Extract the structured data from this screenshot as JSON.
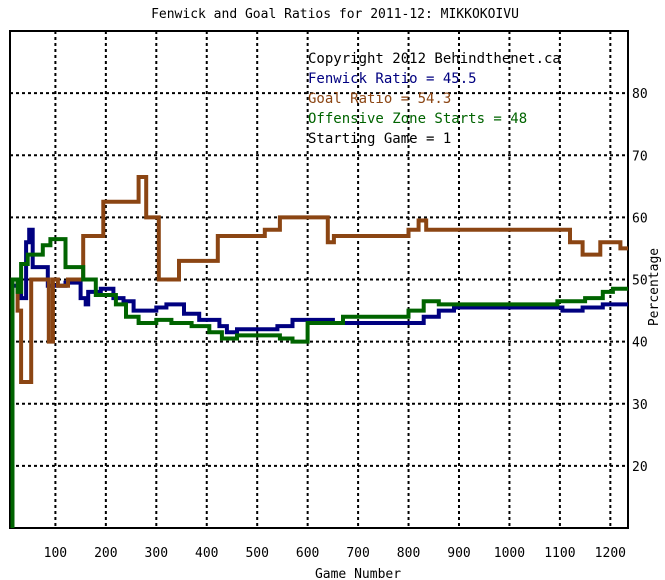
{
  "chart_data": {
    "type": "line",
    "title": "Fenwick and Goal Ratios for 2011-12: MIKKOKOIVU",
    "xlabel": "Game Number",
    "ylabel": "Percentage",
    "xlim": [
      10,
      1235
    ],
    "ylim": [
      10,
      90
    ],
    "x_ticks": [
      100,
      200,
      300,
      400,
      500,
      600,
      700,
      800,
      900,
      1000,
      1100,
      1200
    ],
    "y_ticks": [
      20,
      30,
      40,
      50,
      60,
      70,
      80
    ],
    "grid": true,
    "legend": {
      "placement": "top-right",
      "copyright": "Copyright 2012 Behindthenet.ca",
      "entries": [
        {
          "text": "Fenwick Ratio = 45.5",
          "color": "#000080"
        },
        {
          "text": "Goal Ratio = 54.3",
          "color": "#8b4513"
        },
        {
          "text": "Offensive Zone Starts = 48",
          "color": "#006400"
        }
      ],
      "starting_game": "Starting Game = 1"
    },
    "series": [
      {
        "color": "#000080",
        "points": [
          [
            15,
            10
          ],
          [
            15,
            49
          ],
          [
            25,
            49
          ],
          [
            25,
            50
          ],
          [
            32,
            50
          ],
          [
            32,
            47
          ],
          [
            42,
            47
          ],
          [
            42,
            56
          ],
          [
            48,
            56
          ],
          [
            48,
            58
          ],
          [
            55,
            58
          ],
          [
            55,
            52
          ],
          [
            85,
            52
          ],
          [
            85,
            49
          ],
          [
            120,
            49
          ],
          [
            120,
            49.5
          ],
          [
            145,
            49.5
          ],
          [
            145,
            50
          ],
          [
            150,
            50
          ],
          [
            150,
            47
          ],
          [
            160,
            47
          ],
          [
            160,
            46
          ],
          [
            165,
            46
          ],
          [
            165,
            48
          ],
          [
            190,
            48
          ],
          [
            190,
            48.5
          ],
          [
            215,
            48.5
          ],
          [
            215,
            47
          ],
          [
            235,
            47
          ],
          [
            235,
            46.5
          ],
          [
            255,
            46.5
          ],
          [
            255,
            45
          ],
          [
            300,
            45
          ],
          [
            300,
            45.5
          ],
          [
            320,
            45.5
          ],
          [
            320,
            46
          ],
          [
            355,
            46
          ],
          [
            355,
            44.5
          ],
          [
            385,
            44.5
          ],
          [
            385,
            43.5
          ],
          [
            425,
            43.5
          ],
          [
            425,
            42.5
          ],
          [
            440,
            42.5
          ],
          [
            440,
            41.5
          ],
          [
            460,
            41.5
          ],
          [
            460,
            42
          ],
          [
            540,
            42
          ],
          [
            540,
            42.5
          ],
          [
            570,
            42.5
          ],
          [
            570,
            43.5
          ],
          [
            650,
            43.5
          ],
          [
            650,
            43
          ],
          [
            830,
            43
          ],
          [
            830,
            44
          ],
          [
            860,
            44
          ],
          [
            860,
            45
          ],
          [
            890,
            45
          ],
          [
            890,
            45.5
          ],
          [
            1105,
            45.5
          ],
          [
            1105,
            45
          ],
          [
            1145,
            45
          ],
          [
            1145,
            45.5
          ],
          [
            1185,
            45.5
          ],
          [
            1185,
            46
          ],
          [
            1235,
            46
          ]
        ]
      },
      {
        "color": "#8b4513",
        "points": [
          [
            15,
            49
          ],
          [
            15,
            50
          ],
          [
            25,
            50
          ],
          [
            25,
            45
          ],
          [
            32,
            45
          ],
          [
            32,
            33.5
          ],
          [
            52,
            33.5
          ],
          [
            52,
            50
          ],
          [
            87,
            50
          ],
          [
            87,
            40
          ],
          [
            95,
            40
          ],
          [
            95,
            50
          ],
          [
            105,
            50
          ],
          [
            105,
            49
          ],
          [
            125,
            49
          ],
          [
            125,
            50
          ],
          [
            155,
            50
          ],
          [
            155,
            57
          ],
          [
            195,
            57
          ],
          [
            195,
            62.5
          ],
          [
            265,
            62.5
          ],
          [
            265,
            66.5
          ],
          [
            280,
            66.5
          ],
          [
            280,
            60
          ],
          [
            305,
            60
          ],
          [
            305,
            50
          ],
          [
            345,
            50
          ],
          [
            345,
            53
          ],
          [
            385,
            53
          ],
          [
            385,
            53
          ],
          [
            422,
            53
          ],
          [
            422,
            57
          ],
          [
            515,
            57
          ],
          [
            515,
            58
          ],
          [
            545,
            58
          ],
          [
            545,
            60
          ],
          [
            640,
            60
          ],
          [
            640,
            56
          ],
          [
            652,
            56
          ],
          [
            652,
            57
          ],
          [
            800,
            57
          ],
          [
            800,
            58
          ],
          [
            820,
            58
          ],
          [
            820,
            59.5
          ],
          [
            835,
            59.5
          ],
          [
            835,
            58
          ],
          [
            1120,
            58
          ],
          [
            1120,
            56
          ],
          [
            1145,
            56
          ],
          [
            1145,
            54
          ],
          [
            1180,
            54
          ],
          [
            1180,
            56
          ],
          [
            1220,
            56
          ],
          [
            1220,
            55
          ],
          [
            1235,
            55
          ]
        ]
      },
      {
        "color": "#006400",
        "points": [
          [
            15,
            10
          ],
          [
            15,
            50
          ],
          [
            25,
            50
          ],
          [
            25,
            48
          ],
          [
            32,
            48
          ],
          [
            32,
            52.5
          ],
          [
            45,
            52.5
          ],
          [
            45,
            54
          ],
          [
            75,
            54
          ],
          [
            75,
            55.5
          ],
          [
            90,
            55.5
          ],
          [
            90,
            56.5
          ],
          [
            120,
            56.5
          ],
          [
            120,
            52
          ],
          [
            155,
            52
          ],
          [
            155,
            50
          ],
          [
            180,
            50
          ],
          [
            180,
            47.5
          ],
          [
            220,
            47.5
          ],
          [
            220,
            46
          ],
          [
            240,
            46
          ],
          [
            240,
            44
          ],
          [
            265,
            44
          ],
          [
            265,
            43
          ],
          [
            300,
            43
          ],
          [
            300,
            43.5
          ],
          [
            330,
            43.5
          ],
          [
            330,
            43
          ],
          [
            370,
            43
          ],
          [
            370,
            42.5
          ],
          [
            405,
            42.5
          ],
          [
            405,
            41.5
          ],
          [
            430,
            41.5
          ],
          [
            430,
            40.5
          ],
          [
            460,
            40.5
          ],
          [
            460,
            41
          ],
          [
            545,
            41
          ],
          [
            545,
            40.5
          ],
          [
            570,
            40.5
          ],
          [
            570,
            40
          ],
          [
            600,
            40
          ],
          [
            600,
            43
          ],
          [
            670,
            43
          ],
          [
            670,
            44
          ],
          [
            800,
            44
          ],
          [
            800,
            45
          ],
          [
            830,
            45
          ],
          [
            830,
            46.5
          ],
          [
            860,
            46.5
          ],
          [
            860,
            46
          ],
          [
            1095,
            46
          ],
          [
            1095,
            46.5
          ],
          [
            1150,
            46.5
          ],
          [
            1150,
            47
          ],
          [
            1185,
            47
          ],
          [
            1185,
            48
          ],
          [
            1205,
            48
          ],
          [
            1205,
            48.5
          ],
          [
            1235,
            48.5
          ]
        ]
      }
    ]
  }
}
